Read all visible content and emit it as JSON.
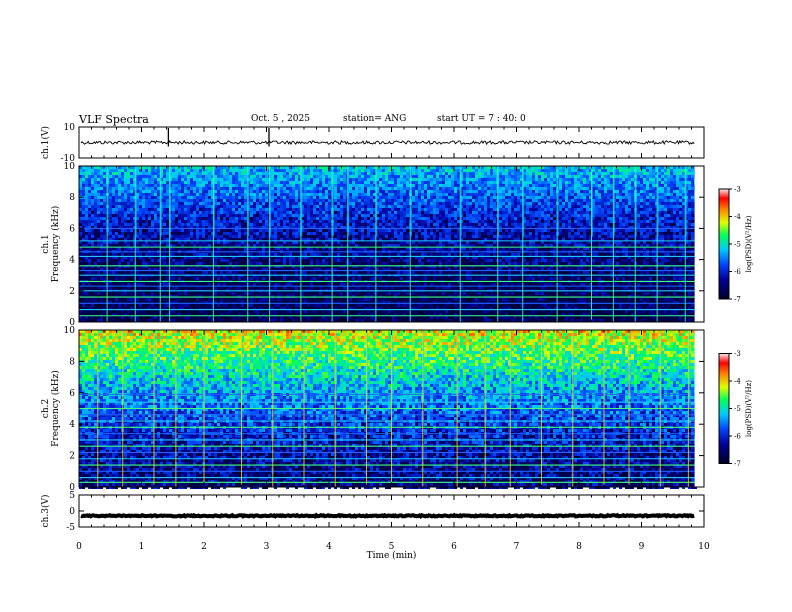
{
  "header": {
    "title": "VLF Spectra",
    "date": "Oct. 5 , 2025",
    "station": "station= ANG",
    "start": "start UT =  7 : 40: 0"
  },
  "chart_data": [
    {
      "type": "line",
      "name": "ch1-waveform",
      "ylabel": "ch.1(V)",
      "ylim": [
        -10,
        10
      ],
      "yticks": [
        "10",
        "-10"
      ],
      "trace_level": 0,
      "spikes_min": [
        1.43,
        3.04
      ]
    },
    {
      "type": "heatmap",
      "name": "ch1-spectrogram",
      "ylabel": "ch.1\nFrequency (kHz)",
      "ylabel_lines": [
        "ch.1",
        "Frequency  (kHz)"
      ],
      "ylim": [
        0,
        10
      ],
      "yticks": [
        "0",
        "2",
        "4",
        "6",
        "8",
        "10"
      ],
      "colorbar": {
        "label": "log(PSD)(V²/Hz)",
        "range": [
          -7,
          -3
        ],
        "ticks": [
          "-3",
          "-4",
          "-5",
          "-6",
          "-7"
        ]
      },
      "tone_lines_khz": [
        0.4,
        0.8,
        1.2,
        1.6,
        2.0,
        2.3,
        2.6,
        3.0,
        3.3,
        3.6,
        4.2,
        4.5,
        4.8,
        5.2,
        6.0
      ],
      "sferic_times_min": [
        0.45,
        0.9,
        1.3,
        1.45,
        2.15,
        2.7,
        3.05,
        3.55,
        4.05,
        4.3,
        4.75,
        5.3,
        6.1,
        6.7,
        7.1,
        7.65,
        8.2,
        8.55,
        8.9,
        9.25,
        9.7
      ]
    },
    {
      "type": "heatmap",
      "name": "ch2-spectrogram",
      "ylabel": "ch.2\nFrequency (kHz)",
      "ylabel_lines": [
        "ch.2",
        "Frequency  (kHz)"
      ],
      "ylim": [
        0,
        10
      ],
      "yticks": [
        "0",
        "2",
        "4",
        "6",
        "8",
        "10"
      ],
      "colorbar": {
        "label": "log(PSD)(V²/Hz)",
        "range": [
          -7,
          -3
        ],
        "ticks": [
          "-3",
          "-4",
          "-5",
          "-6",
          "-7"
        ]
      },
      "tone_lines_khz": [
        0.3,
        0.6,
        1.0,
        1.4,
        1.8,
        2.2,
        2.6,
        3.0,
        3.4,
        3.8,
        4.2,
        4.6,
        5.0,
        5.4,
        5.9
      ],
      "sferic_times_min": [
        0.3,
        0.7,
        1.2,
        1.55,
        2.0,
        2.6,
        3.1,
        3.6,
        4.1,
        4.6,
        5.0,
        5.5,
        6.05,
        6.5,
        6.9,
        7.4,
        7.9,
        8.4,
        8.8,
        9.3,
        9.75
      ]
    },
    {
      "type": "line",
      "name": "ch3-waveform",
      "ylabel": "ch.3(V)",
      "ylim": [
        -5,
        5
      ],
      "yticks": [
        "5",
        "0",
        "-5"
      ],
      "trace_level": -1.5
    }
  ],
  "xaxis": {
    "label": "Time  (min)",
    "range": [
      0,
      10
    ],
    "data_end_min": 9.85,
    "ticks": [
      "0",
      "1",
      "2",
      "3",
      "4",
      "5",
      "6",
      "7",
      "8",
      "9",
      "10"
    ]
  }
}
